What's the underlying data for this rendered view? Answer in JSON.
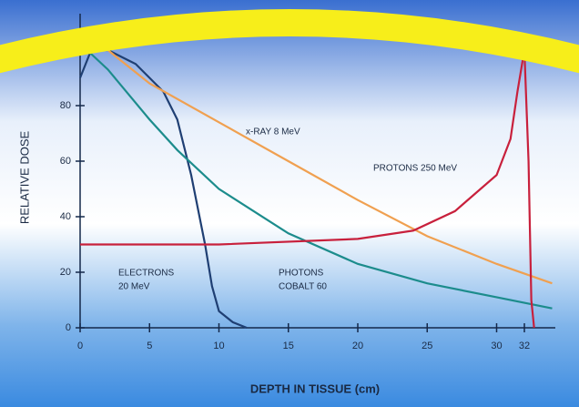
{
  "chart_data": {
    "type": "line",
    "x_label": "DEPTH IN TISSUE (cm)",
    "y_label": "RELATIVE DOSE",
    "xlim": [
      0,
      34
    ],
    "ylim": [
      0,
      110
    ],
    "xticks": [
      0,
      5,
      10,
      15,
      20,
      25,
      30,
      32
    ],
    "yticks": [
      0,
      20,
      40,
      60,
      80
    ],
    "series": [
      {
        "label": [
          "ELECTRONS",
          "20 MeV"
        ],
        "color": "#1f3f73",
        "x": [
          0,
          0.8,
          2,
          4,
          6,
          7,
          8,
          9,
          9.5,
          10,
          11,
          12
        ],
        "values": [
          90,
          100,
          100,
          95,
          85,
          75,
          55,
          30,
          15,
          6,
          2,
          0
        ]
      },
      {
        "label": [
          "PHOTONS",
          "COBALT 60"
        ],
        "color": "#1c8c8c",
        "x": [
          0.5,
          2,
          5,
          7,
          10,
          15,
          20,
          25,
          30,
          34
        ],
        "values": [
          100,
          93,
          75,
          64,
          50,
          34,
          23,
          16,
          11,
          7
        ]
      },
      {
        "label": [
          "x-RAY 8 MeV"
        ],
        "color": "#f0a050",
        "x": [
          2,
          5,
          10,
          15,
          20,
          25,
          30,
          34
        ],
        "values": [
          100,
          88,
          74,
          60,
          46,
          33,
          23,
          16
        ]
      },
      {
        "label": [
          "PROTONS 250 MeV"
        ],
        "color": "#c8203c",
        "x": [
          0,
          10,
          20,
          24,
          27,
          30,
          31,
          31.5,
          32,
          32.3,
          32.5,
          32.7
        ],
        "values": [
          30,
          30,
          32,
          35,
          42,
          55,
          68,
          85,
          100,
          60,
          10,
          0
        ]
      }
    ]
  }
}
